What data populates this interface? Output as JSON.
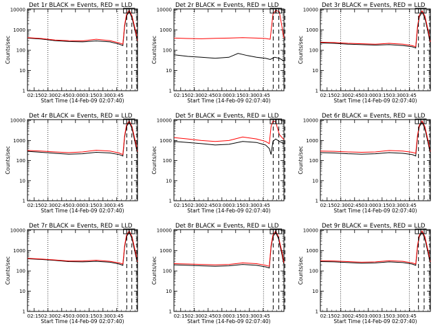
{
  "chart_data": [
    {
      "type": "line",
      "title": "Det 1r BLACK = Events, RED = LLD",
      "xlabel": "Start Time (14-Feb-09 02:07:40)",
      "ylabel": "Counts/sec",
      "x_ticks": [
        "02:15",
        "02:30",
        "02:45",
        "03:00",
        "03:15",
        "03:30",
        "03:45"
      ],
      "y_ticks": [
        "1",
        "10",
        "100",
        "1000",
        "10000"
      ],
      "xlim_minutes": [
        7.67,
        107.0
      ],
      "ylim": [
        1,
        11000
      ],
      "yscale": "log",
      "dotted_lines_minutes": [
        22.3,
        98.3
      ],
      "dashed_lines_minutes": [
        108.3,
        113.8,
        119.3
      ],
      "boxes_minutes": [
        107.7,
        114.0
      ],
      "colors": {
        "events": "#000000",
        "lld": "#ff0000"
      },
      "series": [
        {
          "name": "BLACK = Events",
          "color": "#000000",
          "x": [
            0,
            15,
            30,
            45,
            60,
            75,
            90,
            100,
            104,
            106,
            108,
            111,
            114,
            118,
            120
          ],
          "y": [
            400,
            360,
            300,
            270,
            260,
            290,
            260,
            200,
            170,
            1500,
            5000,
            8000,
            4000,
            700,
            250
          ]
        },
        {
          "name": "RED = LLD",
          "color": "#ff0000",
          "x": [
            0,
            15,
            30,
            45,
            60,
            75,
            90,
            100,
            104,
            106,
            108,
            111,
            114,
            118,
            120
          ],
          "y": [
            420,
            380,
            320,
            300,
            290,
            350,
            300,
            230,
            200,
            1800,
            6000,
            9500,
            5000,
            900,
            300
          ]
        }
      ]
    },
    {
      "type": "line",
      "title": "Det 2r BLACK = Events, RED = LLD",
      "xlabel": "Start Time (14-Feb-09 02:07:40)",
      "ylabel": "Counts/sec",
      "x_ticks": [
        "02:15",
        "02:30",
        "02:45",
        "03:00",
        "03:15",
        "03:30",
        "03:45"
      ],
      "y_ticks": [
        "1",
        "10",
        "100",
        "1000",
        "10000"
      ],
      "xlim_minutes": [
        7.67,
        107.0
      ],
      "ylim": [
        1,
        11000
      ],
      "yscale": "log",
      "dotted_lines_minutes": [
        21.8,
        97.7
      ],
      "dashed_lines_minutes": [
        108.3,
        114.4,
        121.0
      ],
      "boxes_minutes": [
        108.0,
        114.5
      ],
      "colors": {
        "events": "#000000",
        "lld": "#ff0000"
      },
      "series": [
        {
          "name": "BLACK = Events",
          "color": "#000000",
          "x": [
            0,
            15,
            30,
            45,
            60,
            70,
            80,
            90,
            100,
            105,
            110,
            115,
            120
          ],
          "y": [
            60,
            50,
            45,
            40,
            45,
            70,
            55,
            45,
            40,
            35,
            45,
            40,
            30
          ]
        },
        {
          "name": "RED = LLD",
          "color": "#ff0000",
          "x": [
            0,
            15,
            30,
            45,
            60,
            75,
            90,
            100,
            105,
            108,
            111,
            115,
            120
          ],
          "y": [
            400,
            380,
            370,
            390,
            400,
            420,
            400,
            380,
            350,
            6000,
            9500,
            8000,
            400
          ]
        }
      ]
    },
    {
      "type": "line",
      "title": "Det 3r BLACK = Events, RED = LLD",
      "xlabel": "Start Time (14-Feb-09 02:07:40)",
      "ylabel": "Counts/sec",
      "x_ticks": [
        "02:15",
        "02:30",
        "02:45",
        "03:00",
        "03:15",
        "03:30",
        "03:45"
      ],
      "y_ticks": [
        "1",
        "10",
        "100",
        "1000",
        "10000"
      ],
      "xlim_minutes": [
        7.67,
        107.0
      ],
      "ylim": [
        1,
        11000
      ],
      "yscale": "log",
      "dotted_lines_minutes": [
        22.1,
        97.0
      ],
      "dashed_lines_minutes": [
        107.0,
        113.2,
        119.4
      ],
      "boxes_minutes": [
        106.5,
        112.5
      ],
      "colors": {
        "events": "#000000",
        "lld": "#ff0000"
      },
      "series": [
        {
          "name": "BLACK = Events",
          "color": "#000000",
          "x": [
            0,
            15,
            30,
            45,
            60,
            75,
            90,
            100,
            104,
            106,
            108,
            111,
            114,
            118,
            120
          ],
          "y": [
            230,
            220,
            200,
            190,
            180,
            190,
            170,
            150,
            130,
            1200,
            4500,
            7500,
            4000,
            600,
            200
          ]
        },
        {
          "name": "RED = LLD",
          "color": "#ff0000",
          "x": [
            0,
            15,
            30,
            45,
            60,
            75,
            90,
            100,
            104,
            106,
            108,
            111,
            114,
            118,
            120
          ],
          "y": [
            250,
            240,
            220,
            210,
            200,
            220,
            200,
            170,
            150,
            1500,
            5500,
            9000,
            5000,
            800,
            260
          ]
        }
      ]
    },
    {
      "type": "line",
      "title": "Det 4r BLACK = Events, RED = LLD",
      "xlabel": "Start Time (14-Feb-09 02:07:40)",
      "ylabel": "Counts/sec",
      "x_ticks": [
        "02:15",
        "02:30",
        "02:45",
        "03:00",
        "03:15",
        "03:30",
        "03:45"
      ],
      "y_ticks": [
        "1",
        "10",
        "100",
        "1000",
        "10000"
      ],
      "xlim_minutes": [
        7.67,
        107.0
      ],
      "ylim": [
        1,
        11000
      ],
      "yscale": "log",
      "dotted_lines_minutes": [
        22.3,
        98.3
      ],
      "dashed_lines_minutes": [
        108.3,
        113.8,
        119.3
      ],
      "boxes_minutes": [
        107.7,
        114.0
      ],
      "colors": {
        "events": "#000000",
        "lld": "#ff0000"
      },
      "series": [
        {
          "name": "BLACK = Events",
          "color": "#000000",
          "x": [
            0,
            15,
            30,
            45,
            60,
            75,
            90,
            100,
            104,
            106,
            108,
            111,
            114,
            118,
            120
          ],
          "y": [
            290,
            260,
            230,
            210,
            220,
            260,
            240,
            200,
            170,
            1500,
            5000,
            8000,
            4000,
            600,
            220
          ]
        },
        {
          "name": "RED = LLD",
          "color": "#ff0000",
          "x": [
            0,
            15,
            30,
            45,
            60,
            75,
            90,
            100,
            104,
            106,
            108,
            111,
            114,
            118,
            120
          ],
          "y": [
            320,
            300,
            270,
            250,
            270,
            330,
            300,
            240,
            200,
            1800,
            6000,
            9500,
            5000,
            800,
            280
          ]
        }
      ]
    },
    {
      "type": "line",
      "title": "Det 5r BLACK = Events, RED = LLD",
      "xlabel": "Start Time (14-Feb-09 02:07:40)",
      "ylabel": "Counts/sec",
      "x_ticks": [
        "02:15",
        "02:30",
        "02:45",
        "03:00",
        "03:15",
        "03:30",
        "03:45"
      ],
      "y_ticks": [
        "1",
        "10",
        "100",
        "1000",
        "10000"
      ],
      "xlim_minutes": [
        7.67,
        107.0
      ],
      "ylim": [
        1,
        11000
      ],
      "yscale": "log",
      "dotted_lines_minutes": [
        21.8,
        97.7
      ],
      "dashed_lines_minutes": [
        108.3,
        114.4,
        121.0
      ],
      "boxes_minutes": [
        108.0,
        114.5
      ],
      "colors": {
        "events": "#000000",
        "lld": "#ff0000"
      },
      "series": [
        {
          "name": "BLACK = Events",
          "color": "#000000",
          "x": [
            0,
            15,
            30,
            45,
            60,
            75,
            90,
            100,
            104,
            106,
            108,
            111,
            115,
            120
          ],
          "y": [
            900,
            800,
            700,
            600,
            650,
            900,
            800,
            600,
            400,
            200,
            900,
            1200,
            900,
            700
          ]
        },
        {
          "name": "RED = LLD",
          "color": "#ff0000",
          "x": [
            0,
            15,
            30,
            45,
            60,
            75,
            90,
            100,
            104,
            106,
            108,
            111,
            115,
            120
          ],
          "y": [
            1400,
            1200,
            1000,
            900,
            1000,
            1500,
            1200,
            900,
            700,
            5000,
            9500,
            8500,
            2000,
            1100
          ]
        }
      ]
    },
    {
      "type": "line",
      "title": "Det 6r BLACK = Events, RED = LLD",
      "xlabel": "Start Time (14-Feb-09 02:07:40)",
      "ylabel": "Counts/sec",
      "x_ticks": [
        "02:15",
        "02:30",
        "02:45",
        "03:00",
        "03:15",
        "03:30",
        "03:45"
      ],
      "y_ticks": [
        "1",
        "10",
        "100",
        "1000",
        "10000"
      ],
      "xlim_minutes": [
        7.67,
        107.0
      ],
      "ylim": [
        1,
        11000
      ],
      "yscale": "log",
      "dotted_lines_minutes": [
        22.1,
        97.0
      ],
      "dashed_lines_minutes": [
        107.0,
        113.2,
        119.4
      ],
      "boxes_minutes": [
        106.5,
        112.5
      ],
      "colors": {
        "events": "#000000",
        "lld": "#ff0000"
      },
      "series": [
        {
          "name": "BLACK = Events",
          "color": "#000000",
          "x": [
            0,
            15,
            30,
            45,
            60,
            75,
            90,
            100,
            104,
            106,
            108,
            111,
            114,
            118,
            120
          ],
          "y": [
            250,
            240,
            220,
            210,
            220,
            250,
            230,
            200,
            170,
            1500,
            5000,
            8000,
            4000,
            600,
            220
          ]
        },
        {
          "name": "RED = LLD",
          "color": "#ff0000",
          "x": [
            0,
            15,
            30,
            45,
            60,
            75,
            90,
            100,
            104,
            106,
            108,
            111,
            114,
            118,
            120
          ],
          "y": [
            300,
            290,
            270,
            260,
            270,
            320,
            300,
            260,
            230,
            1800,
            6000,
            9500,
            5000,
            800,
            280
          ]
        }
      ]
    },
    {
      "type": "line",
      "title": "Det 7r BLACK = Events, RED = LLD",
      "xlabel": "Start Time (14-Feb-09 02:07:40)",
      "ylabel": "Counts/sec",
      "x_ticks": [
        "02:15",
        "02:30",
        "02:45",
        "03:00",
        "03:15",
        "03:30",
        "03:45"
      ],
      "y_ticks": [
        "1",
        "10",
        "100",
        "1000",
        "10000"
      ],
      "xlim_minutes": [
        7.67,
        107.0
      ],
      "ylim": [
        1,
        11000
      ],
      "yscale": "log",
      "dotted_lines_minutes": [
        22.3,
        98.3
      ],
      "dashed_lines_minutes": [
        108.3,
        113.8,
        119.3
      ],
      "boxes_minutes": [
        107.7,
        114.0
      ],
      "colors": {
        "events": "#000000",
        "lld": "#ff0000"
      },
      "series": [
        {
          "name": "BLACK = Events",
          "color": "#000000",
          "x": [
            0,
            15,
            30,
            45,
            60,
            75,
            90,
            100,
            104,
            106,
            108,
            111,
            114,
            118,
            120
          ],
          "y": [
            400,
            370,
            330,
            290,
            280,
            300,
            270,
            220,
            190,
            1500,
            5000,
            8000,
            4000,
            600,
            230
          ]
        },
        {
          "name": "RED = LLD",
          "color": "#ff0000",
          "x": [
            0,
            15,
            30,
            45,
            60,
            75,
            90,
            100,
            104,
            106,
            108,
            111,
            114,
            118,
            120
          ],
          "y": [
            420,
            390,
            350,
            310,
            310,
            340,
            300,
            250,
            220,
            1800,
            6000,
            9500,
            5000,
            800,
            280
          ]
        }
      ]
    },
    {
      "type": "line",
      "title": "Det 8r BLACK = Events, RED = LLD",
      "xlabel": "Start Time (14-Feb-09 02:07:40)",
      "ylabel": "Counts/sec",
      "x_ticks": [
        "02:15",
        "02:30",
        "02:45",
        "03:00",
        "03:15",
        "03:30",
        "03:45"
      ],
      "y_ticks": [
        "1",
        "10",
        "100",
        "1000",
        "10000"
      ],
      "xlim_minutes": [
        7.67,
        107.0
      ],
      "ylim": [
        1,
        11000
      ],
      "yscale": "log",
      "dotted_lines_minutes": [
        21.8,
        97.7
      ],
      "dashed_lines_minutes": [
        108.3,
        114.4,
        121.0
      ],
      "boxes_minutes": [
        108.0,
        114.5
      ],
      "colors": {
        "events": "#000000",
        "lld": "#ff0000"
      },
      "series": [
        {
          "name": "BLACK = Events",
          "color": "#000000",
          "x": [
            0,
            15,
            30,
            45,
            60,
            75,
            90,
            100,
            104,
            106,
            108,
            111,
            114,
            118,
            120
          ],
          "y": [
            200,
            190,
            180,
            170,
            180,
            210,
            190,
            160,
            140,
            1500,
            5000,
            8000,
            4000,
            600,
            200
          ]
        },
        {
          "name": "RED = LLD",
          "color": "#ff0000",
          "x": [
            0,
            15,
            30,
            45,
            60,
            75,
            90,
            100,
            104,
            106,
            108,
            111,
            114,
            118,
            120
          ],
          "y": [
            230,
            220,
            210,
            200,
            210,
            250,
            230,
            190,
            170,
            1800,
            6000,
            9500,
            5000,
            800,
            250
          ]
        }
      ]
    },
    {
      "type": "line",
      "title": "Det 9r BLACK = Events, RED = LLD",
      "xlabel": "Start Time (14-Feb-09 02:07:40)",
      "ylabel": "Counts/sec",
      "x_ticks": [
        "02:15",
        "02:30",
        "02:45",
        "03:00",
        "03:15",
        "03:30",
        "03:45"
      ],
      "y_ticks": [
        "1",
        "10",
        "100",
        "1000",
        "10000"
      ],
      "xlim_minutes": [
        7.67,
        107.0
      ],
      "ylim": [
        1,
        11000
      ],
      "yscale": "log",
      "dotted_lines_minutes": [
        22.1,
        97.0
      ],
      "dashed_lines_minutes": [
        107.0,
        113.2,
        119.4
      ],
      "boxes_minutes": [
        106.5,
        112.5
      ],
      "colors": {
        "events": "#000000",
        "lld": "#ff0000"
      },
      "series": [
        {
          "name": "BLACK = Events",
          "color": "#000000",
          "x": [
            0,
            15,
            30,
            45,
            60,
            75,
            90,
            100,
            104,
            106,
            108,
            111,
            114,
            118,
            120
          ],
          "y": [
            290,
            280,
            260,
            240,
            250,
            280,
            260,
            220,
            190,
            1500,
            5000,
            8000,
            4000,
            600,
            230
          ]
        },
        {
          "name": "RED = LLD",
          "color": "#ff0000",
          "x": [
            0,
            15,
            30,
            45,
            60,
            75,
            90,
            100,
            104,
            106,
            108,
            111,
            114,
            118,
            120
          ],
          "y": [
            320,
            310,
            290,
            270,
            280,
            320,
            300,
            250,
            220,
            1800,
            6000,
            9500,
            5000,
            800,
            280
          ]
        }
      ]
    }
  ]
}
